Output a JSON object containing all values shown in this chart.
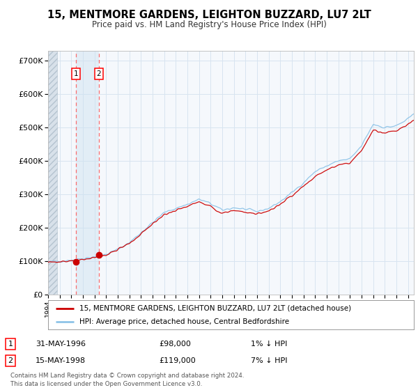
{
  "title": "15, MENTMORE GARDENS, LEIGHTON BUZZARD, LU7 2LT",
  "subtitle": "Price paid vs. HM Land Registry's House Price Index (HPI)",
  "legend_line1": "15, MENTMORE GARDENS, LEIGHTON BUZZARD, LU7 2LT (detached house)",
  "legend_line2": "HPI: Average price, detached house, Central Bedfordshire",
  "transaction1_date": "31-MAY-1996",
  "transaction1_price": 98000,
  "transaction1_note": "1% ↓ HPI",
  "transaction2_date": "15-MAY-1998",
  "transaction2_price": 119000,
  "transaction2_note": "7% ↓ HPI",
  "footnote": "Contains HM Land Registry data © Crown copyright and database right 2024.\nThis data is licensed under the Open Government Licence v3.0.",
  "hpi_color": "#8ec4e8",
  "price_color": "#cc0000",
  "transaction_vline_color": "#ff5555",
  "ylim": [
    0,
    730000
  ],
  "yticks": [
    0,
    100000,
    200000,
    300000,
    400000,
    500000,
    600000,
    700000
  ],
  "ytick_labels": [
    "£0",
    "£100K",
    "£200K",
    "£300K",
    "£400K",
    "£500K",
    "£600K",
    "£700K"
  ],
  "xstart_year": 1994.0,
  "xend_year": 2025.5,
  "transaction1_year": 1996.41,
  "transaction2_year": 1998.37,
  "bg_color": "#ffffff",
  "plot_bg_color": "#f5f8fc",
  "grid_color": "#d8e4f0"
}
